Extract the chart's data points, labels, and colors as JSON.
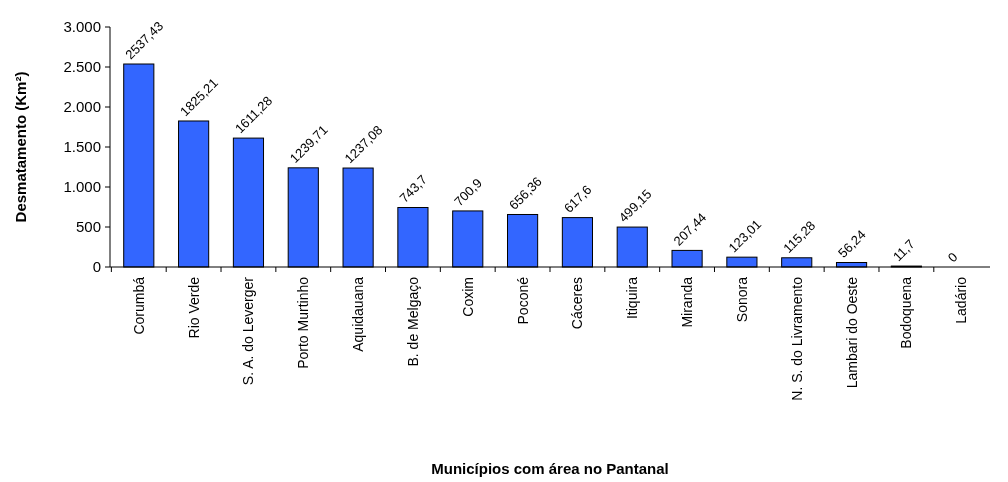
{
  "chart_data": {
    "type": "bar",
    "xlabel": "Municípios com área no Pantanal",
    "ylabel": "Desmatamento (Km²)",
    "categories": [
      "Corumbá",
      "Rio Verde",
      "S. A. do Leverger",
      "Porto Murtinho",
      "Aquidauana",
      "B. de Melgaço",
      "Coxim",
      "Poconé",
      "Cáceres",
      "Itiquira",
      "Miranda",
      "Sonora",
      "N. S. do Livramento",
      "Lambari do Oeste",
      "Bodoquena",
      "Ladário"
    ],
    "values": [
      2537.43,
      1825.21,
      1611.28,
      1239.71,
      1237.08,
      743.7,
      700.9,
      656.36,
      617.6,
      499.15,
      207.44,
      123.01,
      115.28,
      56.24,
      11.7,
      0
    ],
    "value_labels": [
      "2537,43",
      "1825,21",
      "1611,28",
      "1239,71",
      "1237,08",
      "743,7",
      "700,9",
      "656,36",
      "617,6",
      "499,15",
      "207,44",
      "123,01",
      "115,28",
      "56,24",
      "11,7",
      "0"
    ],
    "color": "#3366ff",
    "ylim": [
      0,
      3000
    ],
    "yticks": [
      {
        "value": 0,
        "label": "0"
      },
      {
        "value": 500,
        "label": "500"
      },
      {
        "value": 1000,
        "label": "1.000"
      },
      {
        "value": 1500,
        "label": "1.500"
      },
      {
        "value": 2000,
        "label": "2.000"
      },
      {
        "value": 2500,
        "label": "2.500"
      },
      {
        "value": 3000,
        "label": "3.000"
      }
    ],
    "grid": false
  }
}
